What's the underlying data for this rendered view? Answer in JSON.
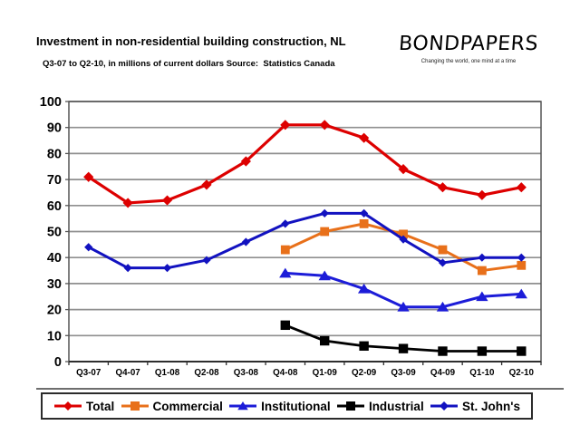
{
  "header": {
    "title": "Investment in non-residential building construction, NL",
    "subtitle": "Q3-07 to Q2-10, in millions of current dollars Source:  Statistics Canada"
  },
  "logo": {
    "name": "BONDPAPERS",
    "tagline": "Changing the world, one mind at a time"
  },
  "chart_data": {
    "type": "line",
    "title": "Investment in non-residential building construction, NL",
    "subtitle": "Q3-07 to Q2-10, in millions of current dollars",
    "source": "Statistics Canada",
    "categories": [
      "Q3-07",
      "Q4-07",
      "Q1-08",
      "Q2-08",
      "Q3-08",
      "Q4-08",
      "Q1-09",
      "Q2-09",
      "Q3-09",
      "Q4-09",
      "Q1-10",
      "Q2-10"
    ],
    "series": [
      {
        "name": "Total",
        "color": "#DD0000",
        "marker": "diamond",
        "values": [
          71,
          61,
          62,
          68,
          77,
          91,
          91,
          86,
          74,
          67,
          64,
          67
        ]
      },
      {
        "name": "Commercial",
        "color": "#E8701A",
        "marker": "square",
        "values": [
          null,
          null,
          null,
          null,
          null,
          43,
          50,
          53,
          49,
          43,
          35,
          37
        ]
      },
      {
        "name": "Institutional",
        "color": "#1C1CD8",
        "marker": "triangle",
        "values": [
          null,
          null,
          null,
          null,
          null,
          34,
          33,
          28,
          21,
          21,
          25,
          26
        ]
      },
      {
        "name": "Industrial",
        "color": "#000000",
        "marker": "square",
        "values": [
          null,
          null,
          null,
          null,
          null,
          14,
          8,
          6,
          5,
          4,
          4,
          4
        ]
      },
      {
        "name": "St. John's",
        "color": "#1212C0",
        "marker": "diamond",
        "values": [
          44,
          36,
          36,
          39,
          46,
          53,
          57,
          57,
          47,
          38,
          40,
          40
        ]
      }
    ],
    "xlabel": "",
    "ylabel": "",
    "ylim": [
      0,
      100
    ],
    "ytick_step": 10,
    "grid": "horizontal",
    "grid_color": "#8F8F8F",
    "axis_color": "#555555",
    "legend_position": "bottom",
    "legend_labels": [
      "Total",
      "Commercial",
      "Institutional",
      "Industrial",
      "St. John's"
    ]
  }
}
